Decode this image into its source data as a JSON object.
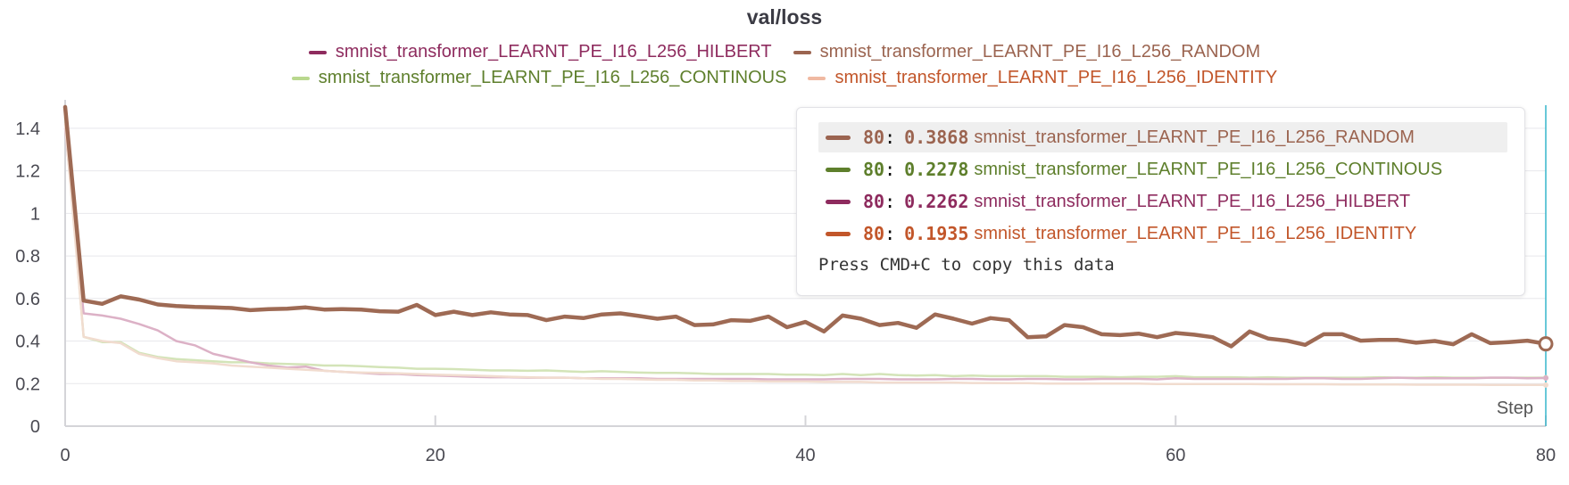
{
  "chart_data": {
    "type": "line",
    "title": "val/loss",
    "xlabel": "Step",
    "ylabel": "",
    "xlim": [
      0,
      80
    ],
    "ylim": [
      0,
      1.5
    ],
    "x_ticks": [
      "0",
      "20",
      "40",
      "60",
      "80"
    ],
    "x_tick_values": [
      0,
      20,
      40,
      60,
      80
    ],
    "y_ticks": [
      "0",
      "0.2",
      "0.4",
      "0.6",
      "0.8",
      "1",
      "1.2",
      "1.4"
    ],
    "y_tick_values": [
      0,
      0.2,
      0.4,
      0.6,
      0.8,
      1.0,
      1.2,
      1.4
    ],
    "legend_placement": "top-center",
    "legend": [
      {
        "name": "smnist_transformer_LEARNT_PE_I16_L256_HILBERT",
        "color": "#8e2b5e"
      },
      {
        "name": "smnist_transformer_LEARNT_PE_I16_L256_RANDOM",
        "color": "#9b6450"
      },
      {
        "name": "smnist_transformer_LEARNT_PE_I16_L256_CONTINOUS",
        "color": "#5e7f2c"
      },
      {
        "name": "smnist_transformer_LEARNT_PE_I16_L256_IDENTITY",
        "color": "#c2562a"
      }
    ],
    "series": [
      {
        "name": "smnist_transformer_LEARNT_PE_I16_L256_RANDOM",
        "color": "#9b6450",
        "emphasis": true,
        "line_color": "#9e6a54",
        "values": [
          1.5,
          0.59,
          0.575,
          0.61,
          0.595,
          0.572,
          0.565,
          0.56,
          0.558,
          0.555,
          0.545,
          0.55,
          0.552,
          0.558,
          0.548,
          0.55,
          0.548,
          0.54,
          0.538,
          0.57,
          0.522,
          0.538,
          0.522,
          0.535,
          0.525,
          0.522,
          0.498,
          0.515,
          0.508,
          0.525,
          0.53,
          0.518,
          0.505,
          0.515,
          0.475,
          0.478,
          0.498,
          0.495,
          0.515,
          0.465,
          0.49,
          0.445,
          0.52,
          0.505,
          0.475,
          0.485,
          0.462,
          0.525,
          0.505,
          0.482,
          0.508,
          0.498,
          0.418,
          0.422,
          0.475,
          0.465,
          0.432,
          0.428,
          0.435,
          0.418,
          0.438,
          0.43,
          0.418,
          0.375,
          0.445,
          0.412,
          0.402,
          0.382,
          0.432,
          0.432,
          0.402,
          0.405,
          0.405,
          0.392,
          0.4,
          0.385,
          0.432,
          0.39,
          0.395,
          0.402,
          0.3868
        ]
      },
      {
        "name": "smnist_transformer_LEARNT_PE_I16_L256_CONTINOUS",
        "color": "#5e7f2c",
        "emphasis": false,
        "line_color": "#d3e4b8",
        "values": [
          1.45,
          0.42,
          0.395,
          0.395,
          0.345,
          0.325,
          0.315,
          0.31,
          0.305,
          0.3,
          0.3,
          0.295,
          0.292,
          0.29,
          0.285,
          0.285,
          0.282,
          0.278,
          0.275,
          0.27,
          0.27,
          0.268,
          0.265,
          0.262,
          0.262,
          0.26,
          0.262,
          0.258,
          0.255,
          0.258,
          0.255,
          0.252,
          0.25,
          0.25,
          0.248,
          0.245,
          0.245,
          0.245,
          0.245,
          0.242,
          0.242,
          0.24,
          0.245,
          0.24,
          0.245,
          0.24,
          0.238,
          0.24,
          0.235,
          0.238,
          0.235,
          0.235,
          0.235,
          0.235,
          0.232,
          0.232,
          0.232,
          0.23,
          0.232,
          0.232,
          0.235,
          0.23,
          0.23,
          0.23,
          0.228,
          0.23,
          0.228,
          0.228,
          0.228,
          0.228,
          0.228,
          0.23,
          0.228,
          0.228,
          0.23,
          0.228,
          0.228,
          0.228,
          0.228,
          0.228,
          0.2278
        ]
      },
      {
        "name": "smnist_transformer_LEARNT_PE_I16_L256_HILBERT",
        "color": "#8e2b5e",
        "emphasis": false,
        "line_color": "#dcb1c6",
        "values": [
          1.4,
          0.53,
          0.52,
          0.505,
          0.48,
          0.45,
          0.4,
          0.38,
          0.34,
          0.32,
          0.3,
          0.285,
          0.275,
          0.28,
          0.26,
          0.255,
          0.25,
          0.245,
          0.245,
          0.24,
          0.238,
          0.235,
          0.232,
          0.23,
          0.23,
          0.228,
          0.228,
          0.228,
          0.225,
          0.225,
          0.225,
          0.225,
          0.222,
          0.222,
          0.222,
          0.222,
          0.222,
          0.222,
          0.22,
          0.22,
          0.22,
          0.22,
          0.222,
          0.222,
          0.222,
          0.22,
          0.22,
          0.22,
          0.222,
          0.222,
          0.22,
          0.22,
          0.222,
          0.222,
          0.22,
          0.22,
          0.222,
          0.222,
          0.222,
          0.22,
          0.225,
          0.222,
          0.222,
          0.222,
          0.222,
          0.222,
          0.222,
          0.225,
          0.225,
          0.222,
          0.222,
          0.225,
          0.228,
          0.225,
          0.225,
          0.225,
          0.225,
          0.228,
          0.228,
          0.225,
          0.2262
        ]
      },
      {
        "name": "smnist_transformer_LEARNT_PE_I16_L256_IDENTITY",
        "color": "#c2562a",
        "emphasis": false,
        "line_color": "#f1dccf",
        "values": [
          1.42,
          0.42,
          0.4,
          0.39,
          0.34,
          0.32,
          0.305,
          0.3,
          0.295,
          0.285,
          0.28,
          0.275,
          0.27,
          0.265,
          0.26,
          0.255,
          0.252,
          0.25,
          0.248,
          0.245,
          0.242,
          0.24,
          0.238,
          0.235,
          0.232,
          0.23,
          0.228,
          0.228,
          0.225,
          0.222,
          0.222,
          0.22,
          0.218,
          0.218,
          0.215,
          0.215,
          0.212,
          0.212,
          0.21,
          0.21,
          0.21,
          0.208,
          0.208,
          0.208,
          0.205,
          0.205,
          0.205,
          0.205,
          0.205,
          0.203,
          0.203,
          0.202,
          0.202,
          0.2,
          0.2,
          0.2,
          0.2,
          0.2,
          0.2,
          0.198,
          0.198,
          0.198,
          0.198,
          0.198,
          0.198,
          0.197,
          0.197,
          0.197,
          0.197,
          0.196,
          0.196,
          0.196,
          0.196,
          0.195,
          0.195,
          0.195,
          0.195,
          0.194,
          0.194,
          0.194,
          0.1935
        ]
      }
    ],
    "hover_step": 80
  },
  "tooltip": {
    "rows": [
      {
        "step": "80",
        "value": "0.3868",
        "name": "smnist_transformer_LEARNT_PE_I16_L256_RANDOM",
        "color": "#9b6450",
        "highlight": true
      },
      {
        "step": "80",
        "value": "0.2278",
        "name": "smnist_transformer_LEARNT_PE_I16_L256_CONTINOUS",
        "color": "#5e7f2c",
        "highlight": false
      },
      {
        "step": "80",
        "value": "0.2262",
        "name": "smnist_transformer_LEARNT_PE_I16_L256_HILBERT",
        "color": "#8e2b5e",
        "highlight": false
      },
      {
        "step": "80",
        "value": "0.1935",
        "name": "smnist_transformer_LEARNT_PE_I16_L256_IDENTITY",
        "color": "#c2562a",
        "highlight": false
      }
    ],
    "note": "Press CMD+C to copy this data"
  },
  "colors": {
    "grid": "#e8e8ec",
    "axis": "#d4d4d8",
    "tick_text": "#4a4a52",
    "hover_line": "#37b5cc"
  }
}
